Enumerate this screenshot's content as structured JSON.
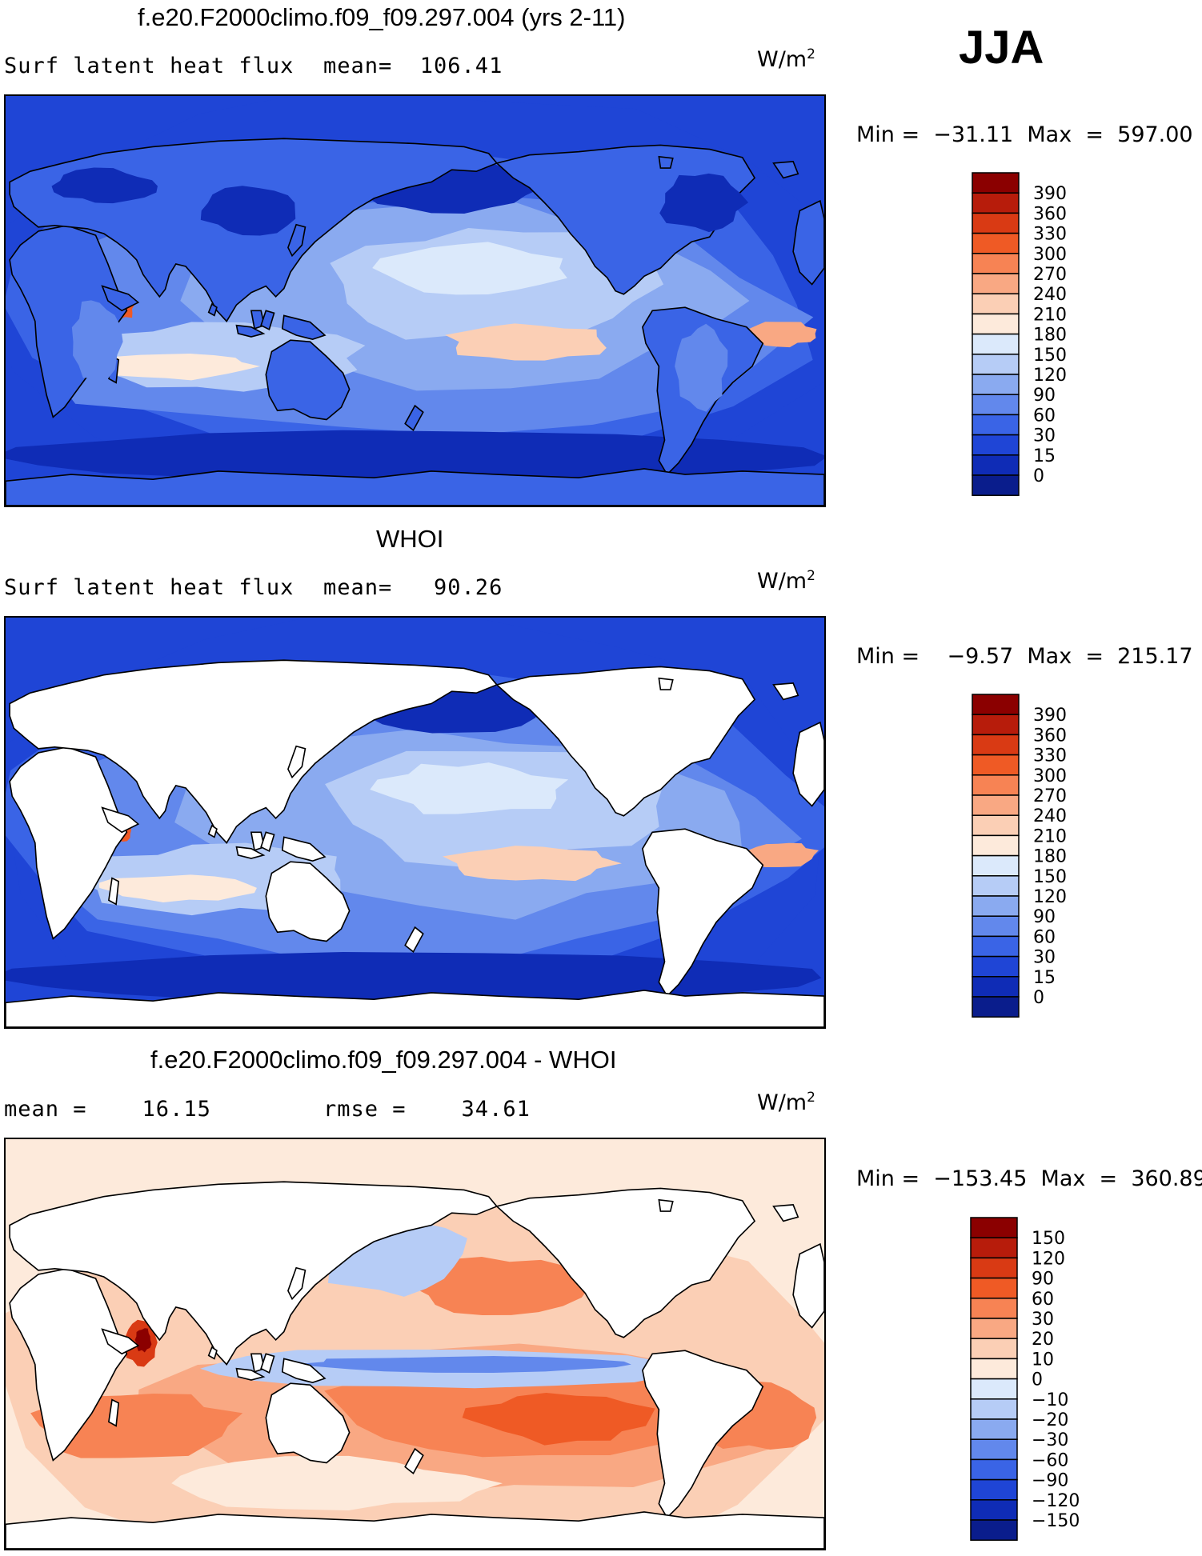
{
  "season": "JJA",
  "units_base": "W/m",
  "units_exp": "2",
  "panels": [
    {
      "title": "f.e20.F2000climo.f09_f09.297.004 (yrs 2-11)",
      "left_text": "Surf latent heat flux",
      "stat1_text": "mean=  106.41",
      "minmax_text": "Min =  −31.11  Max  =  597.00",
      "colorbar": {
        "levels": [
          "390",
          "360",
          "330",
          "300",
          "270",
          "240",
          "210",
          "180",
          "150",
          "120",
          "90",
          "60",
          "30",
          "15",
          "0"
        ],
        "colors": [
          "#8b0000",
          "#b71c0b",
          "#d93a14",
          "#ef5a25",
          "#f78354",
          "#f9a883",
          "#fbcfb5",
          "#fdeadb",
          "#dbe9fb",
          "#b6ccf6",
          "#8aaaf0",
          "#6288ec",
          "#3a64e6",
          "#1f45d6",
          "#0f2cb6",
          "#0a1d8c"
        ]
      },
      "map_palette": "seq"
    },
    {
      "title": "WHOI",
      "left_text": "Surf latent heat flux",
      "stat1_text": "mean=   90.26",
      "minmax_text": "Min =    −9.57  Max  =  215.17",
      "colorbar": {
        "levels": [
          "390",
          "360",
          "330",
          "300",
          "270",
          "240",
          "210",
          "180",
          "150",
          "120",
          "90",
          "60",
          "30",
          "15",
          "0"
        ],
        "colors": [
          "#8b0000",
          "#b71c0b",
          "#d93a14",
          "#ef5a25",
          "#f78354",
          "#f9a883",
          "#fbcfb5",
          "#fdeadb",
          "#dbe9fb",
          "#b6ccf6",
          "#8aaaf0",
          "#6288ec",
          "#3a64e6",
          "#1f45d6",
          "#0f2cb6",
          "#0a1d8c"
        ]
      },
      "map_palette": "seq"
    },
    {
      "title": "f.e20.F2000climo.f09_f09.297.004 - WHOI",
      "left_text": "mean =    16.15",
      "stat1_text": "rmse =    34.61",
      "minmax_text": "Min =  −153.45  Max  =  360.89",
      "colorbar": {
        "levels": [
          "150",
          "120",
          "90",
          "60",
          "30",
          "20",
          "10",
          "0",
          "−10",
          "−20",
          "−30",
          "−60",
          "−90",
          "−120",
          "−150"
        ],
        "colors": [
          "#8b0000",
          "#b71c0b",
          "#d93a14",
          "#ef5a25",
          "#f78354",
          "#f9a883",
          "#fbcfb5",
          "#fdeadb",
          "#dbe9fb",
          "#b6ccf6",
          "#8aaaf0",
          "#6288ec",
          "#3a64e6",
          "#1f45d6",
          "#0f2cb6",
          "#0a1d8c"
        ]
      },
      "map_palette": "div"
    }
  ]
}
